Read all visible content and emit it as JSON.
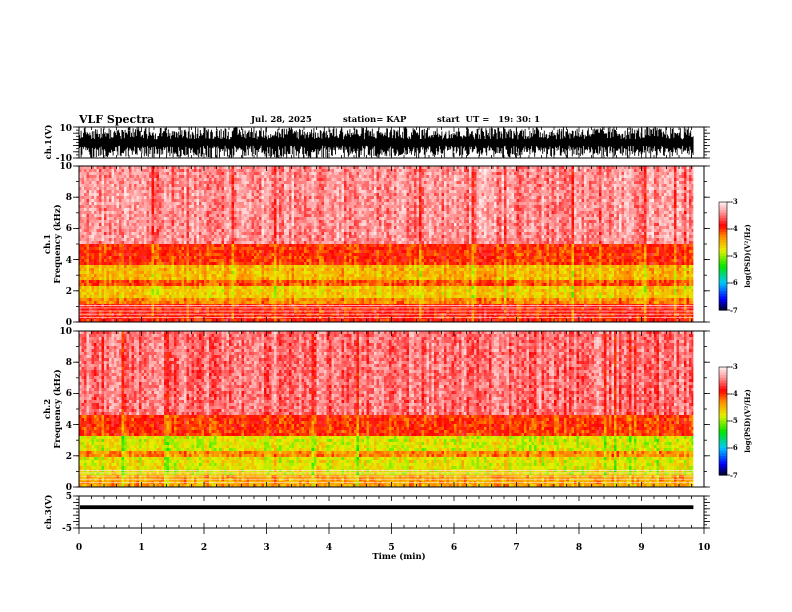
{
  "header": {
    "title": "VLF Spectra",
    "date": "Jul. 28, 2025",
    "station": "station= KAP",
    "start_time": "start  UT =   19: 30: 1"
  },
  "colors": {
    "trace": "#000000",
    "background": "#ffffff"
  },
  "chart_data": [
    {
      "type": "line",
      "name": "ch1-waveform",
      "ylabel": "ch.1(V)",
      "ylim": [
        -10,
        10
      ],
      "yticks": [
        "10",
        "-10"
      ],
      "xlim": [
        0,
        10
      ],
      "data_end_min": 9.83,
      "description_values": {
        "typical_range": [
          -10,
          10
        ]
      }
    },
    {
      "type": "heatmap",
      "name": "ch1-spectrogram",
      "ylabel_top": "ch.1",
      "ylabel": "Frequency (kHz)",
      "ylim": [
        0,
        10
      ],
      "yticks": [
        "0",
        "2",
        "4",
        "6",
        "8",
        "10"
      ],
      "xlim": [
        0,
        10
      ],
      "colorbar": {
        "label": "log(PSD)(V²/Hz)",
        "range": [
          -7,
          -3
        ],
        "ticks": [
          "-3",
          "-4",
          "-5",
          "-6",
          "-7"
        ]
      },
      "bands_khz": [
        {
          "from": 0.0,
          "to": 1.2,
          "level": -3.9
        },
        {
          "from": 1.2,
          "to": 1.6,
          "level": -4.3
        },
        {
          "from": 1.6,
          "to": 2.4,
          "level": -4.6
        },
        {
          "from": 2.4,
          "to": 2.7,
          "level": -4.1
        },
        {
          "from": 2.7,
          "to": 3.7,
          "level": -4.5
        },
        {
          "from": 3.7,
          "to": 5.0,
          "level": -4.0
        },
        {
          "from": 5.0,
          "to": 10.0,
          "level": -3.4
        }
      ]
    },
    {
      "type": "heatmap",
      "name": "ch2-spectrogram",
      "ylabel_top": "ch.2",
      "ylabel": "Frequency (kHz)",
      "ylim": [
        0,
        10
      ],
      "yticks": [
        "0",
        "2",
        "4",
        "6",
        "8",
        "10"
      ],
      "xlim": [
        0,
        10
      ],
      "colorbar": {
        "label": "log(PSD)(V²/Hz)",
        "range": [
          -7,
          -3
        ],
        "ticks": [
          "-3",
          "-4",
          "-5",
          "-6",
          "-7"
        ]
      },
      "bands_khz": [
        {
          "from": 0.0,
          "to": 0.8,
          "level": -4.4
        },
        {
          "from": 0.8,
          "to": 2.0,
          "level": -4.75
        },
        {
          "from": 2.0,
          "to": 2.3,
          "level": -4.3
        },
        {
          "from": 2.3,
          "to": 3.2,
          "level": -4.8
        },
        {
          "from": 3.2,
          "to": 4.7,
          "level": -4.0
        },
        {
          "from": 4.7,
          "to": 10.0,
          "level": -3.5
        }
      ]
    },
    {
      "type": "line",
      "name": "ch3-waveform",
      "ylabel": "ch.3(V)",
      "ylim": [
        -5,
        5
      ],
      "yticks": [
        "5",
        "-5"
      ],
      "xlim": [
        0,
        10
      ],
      "data_end_min": 9.83,
      "level_v": 1.5,
      "thickness_v": 0.6
    }
  ],
  "xaxis": {
    "label": "Time (min)",
    "ticks": [
      "0",
      "1",
      "2",
      "3",
      "4",
      "5",
      "6",
      "7",
      "8",
      "9",
      "10"
    ]
  }
}
